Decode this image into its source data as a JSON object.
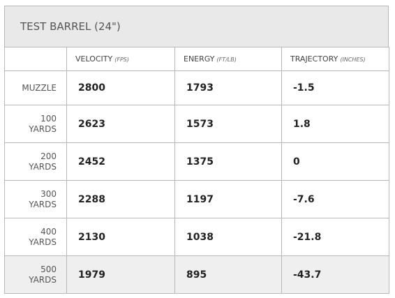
{
  "header": {
    "title": "TEST BARREL (24\")"
  },
  "table": {
    "columns": [
      {
        "name": "VELOCITY",
        "unit": "(FPS)"
      },
      {
        "name": "ENERGY",
        "unit": "(FT/LB)"
      },
      {
        "name": "TRAJECTORY",
        "unit": "(INCHES)"
      }
    ],
    "rows": [
      {
        "label": "MUZZLE",
        "cells": [
          2800,
          1793,
          -1.5
        ]
      },
      {
        "label": "100 YARDS",
        "cells": [
          2623,
          1573,
          1.8
        ]
      },
      {
        "label": "200 YARDS",
        "cells": [
          2452,
          1375,
          0
        ]
      },
      {
        "label": "300 YARDS",
        "cells": [
          2288,
          1197,
          -7.6
        ]
      },
      {
        "label": "400 YARDS",
        "cells": [
          2130,
          1038,
          -21.8
        ]
      },
      {
        "label": "500 YARDS",
        "cells": [
          1979,
          895,
          -43.7
        ]
      }
    ]
  }
}
